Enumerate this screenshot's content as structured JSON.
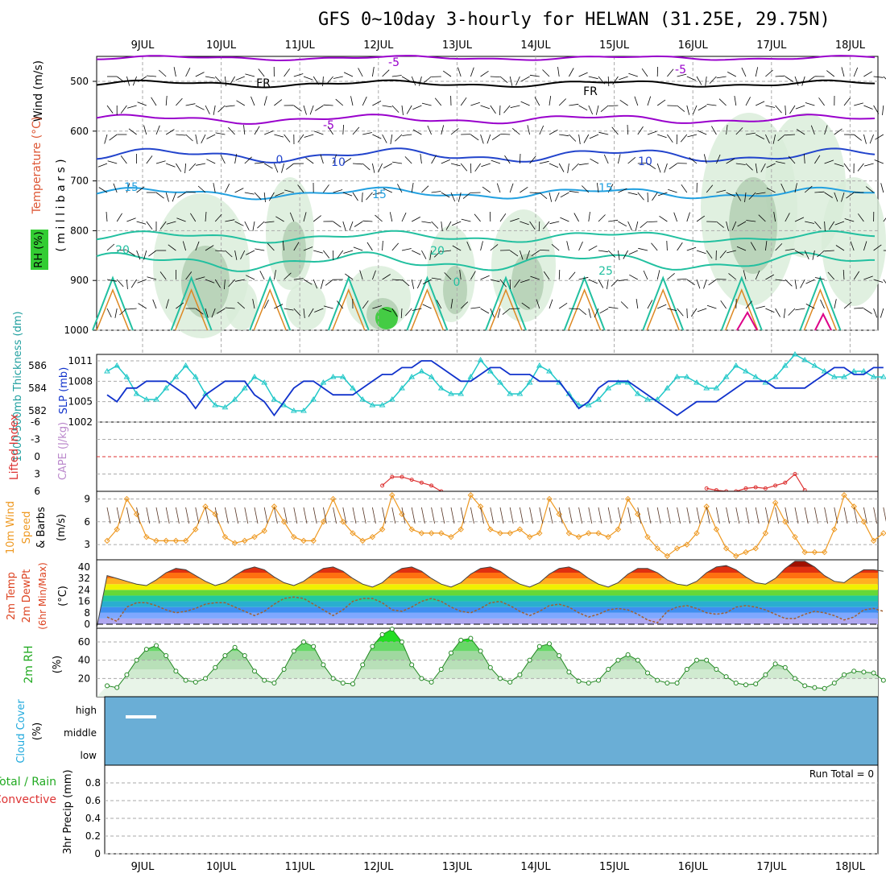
{
  "title": "GFS 0~10day 3-hourly for HELWAN (31.25E, 29.75N)",
  "colors": {
    "grid": "#aaaaaa",
    "purple": "#9900cc",
    "blue": "#2244cc",
    "lightblue": "#22a0e0",
    "teal": "#22c0a0",
    "orange": "#dd8822",
    "magenta": "#dd0088",
    "cyan": "#22c8c8",
    "slp": "#1133cc",
    "li": "#dd3333",
    "wind10": "#ee9922",
    "rh": "#33cc33",
    "cloud": "#6aaed6",
    "precip": "#dd3333"
  },
  "date_labels": [
    "9JUL",
    "10JUL",
    "11JUL",
    "12JUL",
    "13JUL",
    "14JUL",
    "15JUL",
    "16JUL",
    "17JUL",
    "18JUL"
  ],
  "panels": {
    "upper": {
      "label_wind": "Wind (m/s)",
      "label_temp": "Temperature (°C)",
      "label_rh": "RH (%)",
      "label_mb": "( m i l l i b a r s )",
      "yticks": [
        "500",
        "600",
        "700",
        "800",
        "900",
        "1000"
      ],
      "contour_labels": [
        "-5",
        "-5",
        "-5",
        "FR",
        "FR",
        "0",
        "10",
        "10",
        "15",
        "15",
        "15",
        "20",
        "20",
        "25",
        "0"
      ]
    },
    "slp": {
      "label_thick": "1000-500mb Thickness (dm)",
      "label_slp": "SLP (mb)",
      "ticks_left": [
        "586",
        "584",
        "582"
      ],
      "ticks_right": [
        "1011",
        "1008",
        "1005",
        "1002"
      ]
    },
    "li": {
      "label_li": "Lifted Index",
      "label_cape": "CAPE (J/kg)",
      "ticks": [
        "-6",
        "-3",
        "0",
        "3",
        "6"
      ]
    },
    "wind10": {
      "label": "10m Wind Speed & Barbs",
      "unit": "(m/s)",
      "ticks": [
        "9",
        "6",
        "3"
      ]
    },
    "temp": {
      "label": "2m Temp 2m DewPt (6hr Min/Max)",
      "unit": "(°C)",
      "ticks": [
        "40",
        "32",
        "24",
        "16",
        "8",
        "0"
      ]
    },
    "rh": {
      "label": "2m RH",
      "unit": "(%)",
      "ticks": [
        "60",
        "40",
        "20"
      ]
    },
    "cloud": {
      "label": "Cloud Cover",
      "unit": "(%)",
      "ticks": [
        "high",
        "middle",
        "low"
      ]
    },
    "precip": {
      "label_total": "Total / Rain",
      "label_conv": "Convective",
      "label_precip": "3hr Precip (mm)",
      "run_total": "Run Total = 0",
      "ticks": [
        "0.8",
        "0.6",
        "0.4",
        "0.2",
        "0"
      ]
    }
  },
  "chart_data": [
    {
      "type": "line",
      "name": "slp",
      "title": "",
      "ylabel": "SLP (mb)",
      "ylim": [
        1002,
        1011
      ],
      "x": [
        0,
        1,
        2,
        3,
        4,
        5,
        6,
        7,
        8,
        9,
        10,
        11,
        12,
        13,
        14,
        15,
        16,
        17,
        18,
        19,
        20,
        21,
        22,
        23,
        24,
        25,
        26,
        27,
        28,
        29,
        30,
        31,
        32,
        33,
        34,
        35,
        36,
        37,
        38,
        39,
        40,
        41,
        42,
        43,
        44,
        45,
        46,
        47,
        48,
        49,
        50,
        51,
        52,
        53,
        54,
        55,
        56,
        57,
        58,
        59,
        60,
        61,
        62,
        63,
        64,
        65,
        66,
        67,
        68,
        69,
        70,
        71,
        72,
        73,
        74,
        75,
        76,
        77,
        78,
        79
      ],
      "values": [
        1006,
        1005,
        1007,
        1007,
        1008,
        1008,
        1008,
        1007,
        1006,
        1004,
        1006,
        1007,
        1008,
        1008,
        1008,
        1006,
        1005,
        1003,
        1005,
        1007,
        1008,
        1008,
        1007,
        1006,
        1006,
        1006,
        1007,
        1008,
        1009,
        1009,
        1010,
        1010,
        1011,
        1011,
        1010,
        1009,
        1008,
        1008,
        1009,
        1010,
        1010,
        1009,
        1009,
        1009,
        1008,
        1008,
        1008,
        1006,
        1004,
        1005,
        1007,
        1008,
        1008,
        1008,
        1007,
        1006,
        1005,
        1004,
        1003,
        1004,
        1005,
        1005,
        1005,
        1006,
        1007,
        1008,
        1008,
        1008,
        1007,
        1007,
        1007,
        1007,
        1008,
        1009,
        1010,
        1010,
        1009,
        1009,
        1010,
        1010
      ]
    },
    {
      "type": "line",
      "name": "thickness",
      "ylabel": "1000-500mb Thickness (dm)",
      "ylim": [
        581,
        587
      ],
      "x": [
        0,
        1,
        2,
        3,
        4,
        5,
        6,
        7,
        8,
        9,
        10,
        11,
        12,
        13,
        14,
        15,
        16,
        17,
        18,
        19,
        20,
        21,
        22,
        23,
        24,
        25,
        26,
        27,
        28,
        29,
        30,
        31,
        32,
        33,
        34,
        35,
        36,
        37,
        38,
        39,
        40,
        41,
        42,
        43,
        44,
        45,
        46,
        47,
        48,
        49,
        50,
        51,
        52,
        53,
        54,
        55,
        56,
        57,
        58,
        59,
        60,
        61,
        62,
        63,
        64,
        65,
        66,
        67,
        68,
        69,
        70,
        71,
        72,
        73,
        74,
        75,
        76,
        77,
        78,
        79
      ],
      "values": [
        585.5,
        586,
        585,
        583.5,
        583,
        583,
        584,
        585,
        586,
        585,
        583.5,
        582.5,
        582.3,
        583,
        584,
        585,
        584.5,
        583,
        582.5,
        582,
        582,
        583,
        584.5,
        585,
        585,
        584,
        583,
        582.5,
        582.5,
        583,
        584,
        585,
        585.5,
        585,
        584,
        583.5,
        583.5,
        585,
        586.5,
        585.5,
        584.5,
        583.5,
        583.5,
        584.5,
        586,
        585.5,
        584.5,
        583.5,
        582.5,
        582.5,
        583,
        584,
        584.5,
        584.5,
        583.5,
        583,
        583,
        584,
        585,
        585,
        584.5,
        584,
        584,
        585,
        586,
        585.5,
        585,
        584.5,
        585,
        586,
        587,
        586.5,
        586,
        585.5,
        585,
        585,
        585.5,
        585.5,
        585,
        585
      ]
    },
    {
      "type": "line",
      "name": "lifted_index",
      "ylabel": "Lifted Index",
      "ylim": [
        -6,
        6
      ],
      "x": [
        28,
        29,
        30,
        31,
        32,
        33,
        34,
        61,
        62,
        63,
        64,
        65,
        66,
        67,
        68,
        69,
        70,
        71
      ],
      "values": [
        5,
        3.5,
        3.5,
        4,
        4.5,
        5,
        6,
        5.5,
        5.8,
        6,
        6,
        5.5,
        5.3,
        5.5,
        5,
        4.5,
        3,
        5.8
      ]
    },
    {
      "type": "line",
      "name": "wind10m",
      "ylabel": "10m Wind Speed (m/s)",
      "ylim": [
        1,
        10
      ],
      "x": [
        0,
        1,
        2,
        3,
        4,
        5,
        6,
        7,
        8,
        9,
        10,
        11,
        12,
        13,
        14,
        15,
        16,
        17,
        18,
        19,
        20,
        21,
        22,
        23,
        24,
        25,
        26,
        27,
        28,
        29,
        30,
        31,
        32,
        33,
        34,
        35,
        36,
        37,
        38,
        39,
        40,
        41,
        42,
        43,
        44,
        45,
        46,
        47,
        48,
        49,
        50,
        51,
        52,
        53,
        54,
        55,
        56,
        57,
        58,
        59,
        60,
        61,
        62,
        63,
        64,
        65,
        66,
        67,
        68,
        69,
        70,
        71,
        72,
        73,
        74,
        75,
        76,
        77,
        78,
        79
      ],
      "values": [
        3.5,
        5,
        9,
        7,
        4,
        3.5,
        3.5,
        3.5,
        3.5,
        5,
        8,
        7,
        4,
        3.2,
        3.5,
        4,
        4.8,
        8,
        6,
        4,
        3.5,
        3.5,
        6,
        9,
        6,
        4.5,
        3.5,
        4,
        5,
        9.5,
        7,
        5,
        4.5,
        4.5,
        4.5,
        4,
        5,
        9.5,
        8,
        5,
        4.5,
        4.5,
        5,
        4,
        4.5,
        9,
        7,
        4.5,
        4,
        4.5,
        4.5,
        4,
        5,
        9,
        7,
        4,
        2.5,
        1.5,
        2.5,
        3,
        4.5,
        8,
        5,
        2.5,
        1.5,
        2,
        2.5,
        4.5,
        8.5,
        6,
        4,
        2,
        2,
        2,
        5,
        9.5,
        8,
        6,
        3.5,
        4.5
      ]
    },
    {
      "type": "area",
      "name": "temp2m",
      "ylabel": "2m Temp (°C)",
      "ylim": [
        0,
        45
      ],
      "x": [
        0,
        1,
        2,
        3,
        4,
        5,
        6,
        7,
        8,
        9,
        10,
        11,
        12,
        13,
        14,
        15,
        16,
        17,
        18,
        19,
        20,
        21,
        22,
        23,
        24,
        25,
        26,
        27,
        28,
        29,
        30,
        31,
        32,
        33,
        34,
        35,
        36,
        37,
        38,
        39,
        40,
        41,
        42,
        43,
        44,
        45,
        46,
        47,
        48,
        49,
        50,
        51,
        52,
        53,
        54,
        55,
        56,
        57,
        58,
        59,
        60,
        61,
        62,
        63,
        64,
        65,
        66,
        67,
        68,
        69,
        70,
        71,
        72,
        73,
        74,
        75,
        76,
        77,
        78,
        79
      ],
      "values": [
        34,
        32,
        30,
        28,
        27,
        31,
        36,
        39,
        38,
        34,
        30,
        27,
        29,
        34,
        38,
        40,
        38,
        33,
        29,
        27,
        30,
        35,
        39,
        40,
        37,
        32,
        28,
        26,
        29,
        35,
        39,
        40,
        37,
        32,
        28,
        26,
        29,
        35,
        39,
        40,
        37,
        32,
        28,
        26,
        29,
        35,
        39,
        40,
        37,
        32,
        28,
        26,
        29,
        35,
        39,
        39,
        36,
        31,
        28,
        27,
        30,
        36,
        40,
        41,
        38,
        33,
        29,
        28,
        32,
        39,
        44,
        44,
        40,
        34,
        30,
        29,
        34,
        38,
        38,
        37
      ]
    },
    {
      "type": "line",
      "name": "dewpoint2m",
      "ylabel": "2m DewPt (°C)",
      "ylim": [
        0,
        45
      ],
      "x": [
        0,
        1,
        2,
        3,
        4,
        5,
        6,
        7,
        8,
        9,
        10,
        11,
        12,
        13,
        14,
        15,
        16,
        17,
        18,
        19,
        20,
        21,
        22,
        23,
        24,
        25,
        26,
        27,
        28,
        29,
        30,
        31,
        32,
        33,
        34,
        35,
        36,
        37,
        38,
        39,
        40,
        41,
        42,
        43,
        44,
        45,
        46,
        47,
        48,
        49,
        50,
        51,
        52,
        53,
        54,
        55,
        56,
        57,
        58,
        59,
        60,
        61,
        62,
        63,
        64,
        65,
        66,
        67,
        68,
        69,
        70,
        71,
        72,
        73,
        74,
        75,
        76,
        77,
        78,
        79
      ],
      "values": [
        5,
        2,
        12,
        15,
        15,
        13,
        10,
        8,
        9,
        11,
        14,
        15,
        15,
        12,
        9,
        6,
        9,
        14,
        18,
        19,
        18,
        14,
        10,
        6,
        10,
        16,
        18,
        18,
        15,
        10,
        9,
        12,
        16,
        18,
        16,
        12,
        9,
        8,
        11,
        15,
        16,
        13,
        9,
        6,
        9,
        13,
        14,
        12,
        8,
        5,
        7,
        10,
        11,
        10,
        7,
        3,
        1,
        9,
        12,
        13,
        11,
        8,
        7,
        8,
        12,
        13,
        12,
        10,
        7,
        4,
        4,
        7,
        9,
        8,
        6,
        3,
        5,
        10,
        11,
        9
      ]
    },
    {
      "type": "area",
      "name": "rh2m",
      "ylabel": "2m RH (%)",
      "ylim": [
        0,
        75
      ],
      "x": [
        0,
        1,
        2,
        3,
        4,
        5,
        6,
        7,
        8,
        9,
        10,
        11,
        12,
        13,
        14,
        15,
        16,
        17,
        18,
        19,
        20,
        21,
        22,
        23,
        24,
        25,
        26,
        27,
        28,
        29,
        30,
        31,
        32,
        33,
        34,
        35,
        36,
        37,
        38,
        39,
        40,
        41,
        42,
        43,
        44,
        45,
        46,
        47,
        48,
        49,
        50,
        51,
        52,
        53,
        54,
        55,
        56,
        57,
        58,
        59,
        60,
        61,
        62,
        63,
        64,
        65,
        66,
        67,
        68,
        69,
        70,
        71,
        72,
        73,
        74,
        75,
        76,
        77,
        78,
        79
      ],
      "values": [
        12,
        10,
        24,
        40,
        52,
        56,
        45,
        28,
        18,
        16,
        20,
        32,
        45,
        54,
        45,
        28,
        18,
        15,
        30,
        50,
        60,
        55,
        35,
        20,
        15,
        14,
        35,
        55,
        68,
        74,
        60,
        35,
        20,
        16,
        30,
        48,
        62,
        64,
        50,
        32,
        20,
        16,
        24,
        40,
        55,
        58,
        45,
        27,
        17,
        15,
        18,
        30,
        40,
        46,
        40,
        26,
        18,
        15,
        15,
        30,
        40,
        40,
        30,
        22,
        15,
        13,
        14,
        24,
        36,
        32,
        20,
        12,
        10,
        9,
        15,
        24,
        28,
        27,
        26,
        18
      ]
    },
    {
      "type": "bar",
      "name": "cloud_cover",
      "ylabel": "Cloud Cover (%)",
      "categories": [
        "low",
        "middle",
        "high"
      ],
      "values": [
        0,
        0,
        0
      ]
    },
    {
      "type": "bar",
      "name": "precip3hr",
      "ylabel": "3hr Precip (mm)",
      "ylim": [
        0,
        1
      ],
      "values": [
        0
      ]
    }
  ]
}
